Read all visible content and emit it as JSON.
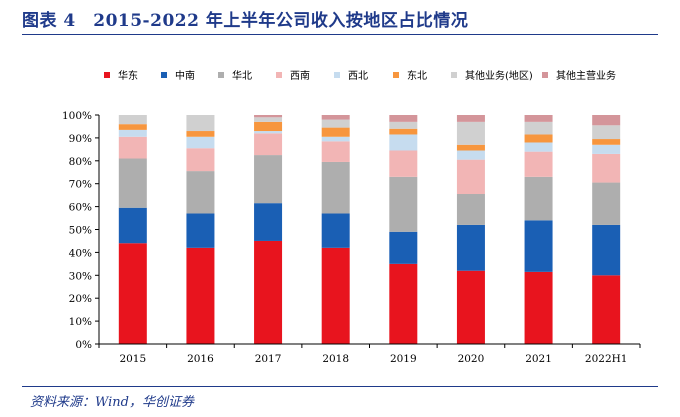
{
  "header": {
    "title": "图表 4　2015-2022 年上半年公司收入按地区占比情况",
    "source": "资料来源：Wind，华创证券"
  },
  "chart_data": {
    "type": "bar",
    "stacked": true,
    "title": "2015-2022 年上半年公司收入按地区占比情况",
    "xlabel": "",
    "ylabel": "",
    "ylim": [
      0,
      100
    ],
    "y_ticks": [
      "0%",
      "10%",
      "20%",
      "30%",
      "40%",
      "50%",
      "60%",
      "70%",
      "80%",
      "90%",
      "100%"
    ],
    "categories": [
      "2015",
      "2016",
      "2017",
      "2018",
      "2019",
      "2020",
      "2021",
      "2022H1"
    ],
    "legend_position": "top",
    "series": [
      {
        "name": "华东",
        "color": "#e8141e",
        "values": [
          44,
          42,
          45,
          42,
          35,
          32,
          31.5,
          30
        ]
      },
      {
        "name": "中南",
        "color": "#1a5fb4",
        "values": [
          15.5,
          15,
          16.5,
          15,
          14,
          20,
          22.5,
          22
        ]
      },
      {
        "name": "华北",
        "color": "#aeaeae",
        "values": [
          21.5,
          18.5,
          21,
          22.5,
          24,
          13.5,
          19,
          18.5
        ]
      },
      {
        "name": "西南",
        "color": "#f2b5b5",
        "values": [
          9.5,
          10,
          9.5,
          9,
          11.5,
          15,
          11,
          12.5
        ]
      },
      {
        "name": "西北",
        "color": "#c6dcef",
        "values": [
          3,
          5,
          1,
          2,
          7,
          4,
          4,
          4
        ]
      },
      {
        "name": "东北",
        "color": "#f7963e",
        "values": [
          2.5,
          2.5,
          4,
          4,
          2.5,
          2.5,
          3.5,
          2.5
        ]
      },
      {
        "name": "其他业务(地区)",
        "color": "#d0d0d0",
        "values": [
          4,
          7,
          2,
          3.5,
          3,
          10,
          5.5,
          6
        ]
      },
      {
        "name": "其他主营业务",
        "color": "#d4959a",
        "values": [
          0,
          0,
          1,
          2,
          3,
          3,
          3,
          4.5
        ]
      }
    ]
  }
}
